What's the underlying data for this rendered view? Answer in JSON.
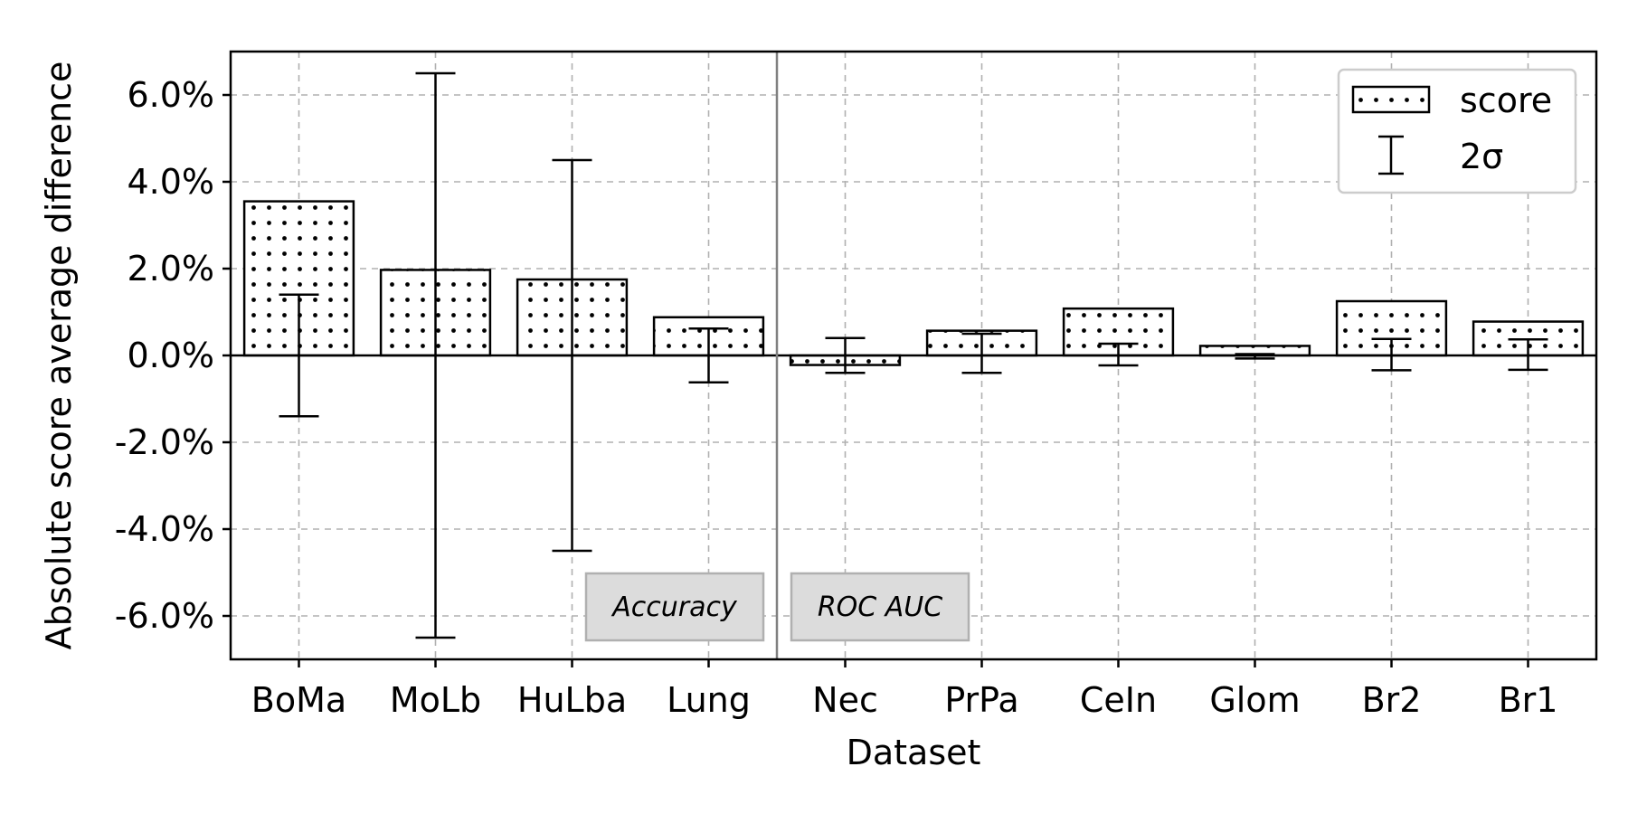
{
  "chart_data": {
    "type": "bar",
    "title": "",
    "xlabel": "Dataset",
    "ylabel": "Absolute score average difference",
    "ylim": [
      -7.0,
      7.0
    ],
    "yticks": [
      -6.0,
      -4.0,
      -2.0,
      0.0,
      2.0,
      4.0,
      6.0
    ],
    "ytick_labels": [
      "-6.0%",
      "-4.0%",
      "-2.0%",
      "0.0%",
      "2.0%",
      "4.0%",
      "6.0%"
    ],
    "categories": [
      "BoMa",
      "MoLb",
      "HuLba",
      "Lung",
      "Nec",
      "PrPa",
      "CeIn",
      "Glom",
      "Br2",
      "Br1"
    ],
    "series": [
      {
        "name": "score",
        "values": [
          3.55,
          1.97,
          1.75,
          0.88,
          -0.22,
          0.57,
          1.08,
          0.22,
          1.25,
          0.78
        ]
      }
    ],
    "error_bars": {
      "name": "2σ",
      "center": [
        0.0,
        0.0,
        0.0,
        0.0,
        0.0,
        0.05,
        0.02,
        -0.02,
        0.02,
        0.02
      ],
      "half_width": [
        1.4,
        6.5,
        4.5,
        0.62,
        0.4,
        0.45,
        0.25,
        0.05,
        0.36,
        0.35
      ]
    },
    "sections": [
      {
        "label": "Accuracy",
        "categories": [
          "BoMa",
          "MoLb",
          "HuLba",
          "Lung"
        ]
      },
      {
        "label": "ROC AUC",
        "categories": [
          "Nec",
          "PrPa",
          "CeIn",
          "Glom",
          "Br2",
          "Br1"
        ]
      }
    ],
    "legend": {
      "position": "top-right",
      "entries": [
        "score",
        "2σ"
      ]
    },
    "grid": true,
    "bar_pattern": "dotted",
    "colors": {
      "bar_fill": "#ffffff",
      "edge": "#000000",
      "grid": "#b0b0b0",
      "divider": "#808080",
      "section_box": "#dcdcdc"
    }
  }
}
